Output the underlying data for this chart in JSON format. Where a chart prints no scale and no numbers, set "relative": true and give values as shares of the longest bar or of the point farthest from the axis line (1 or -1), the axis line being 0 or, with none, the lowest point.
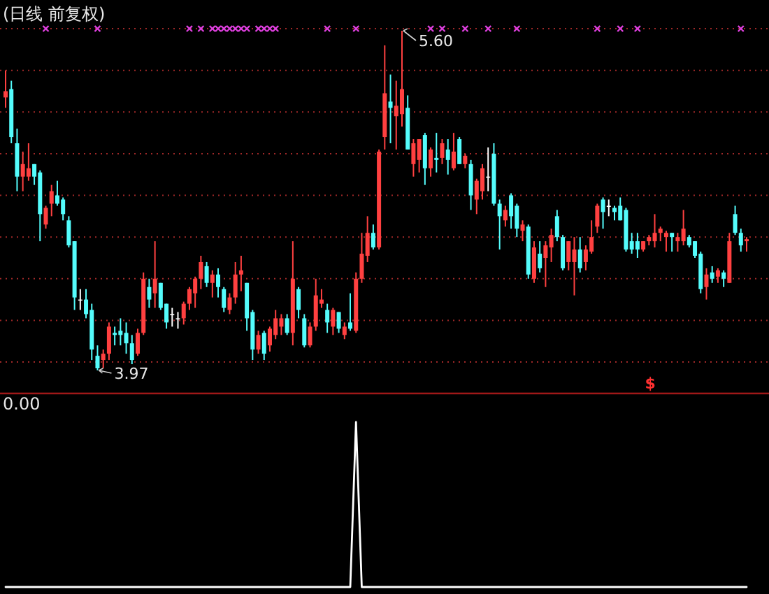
{
  "chart_data": [
    {
      "type": "candlestick",
      "title": "(日线 前复权)",
      "categories": [
        null,
        null,
        null,
        null,
        null,
        null,
        null,
        null,
        null,
        null,
        null,
        null,
        null,
        null,
        null,
        null,
        null,
        null,
        null,
        null,
        null,
        null,
        null,
        null,
        null,
        null,
        null,
        null,
        null,
        null,
        null,
        null,
        null,
        null,
        null,
        null,
        null,
        null,
        null,
        null,
        null,
        null,
        null,
        null,
        null,
        null,
        null,
        null,
        null,
        null,
        null,
        null,
        null,
        null,
        null,
        null,
        null,
        null,
        null,
        null,
        null,
        null,
        null,
        null,
        null,
        null,
        null,
        null,
        null,
        null,
        null,
        null,
        null,
        null,
        null,
        null,
        null,
        null,
        null,
        null,
        null,
        null,
        null,
        null,
        null,
        null,
        null,
        null,
        null,
        null,
        null,
        null,
        null,
        null,
        null,
        null,
        null,
        null,
        null,
        null,
        null,
        null,
        null,
        null,
        null,
        null,
        null,
        null,
        null,
        null,
        null,
        null,
        null,
        null,
        null,
        null,
        null,
        null,
        null,
        null,
        null,
        null,
        null,
        null,
        null,
        null,
        null,
        null,
        null,
        null
      ],
      "ohlc": [
        [
          5.28,
          5.41,
          5.23,
          5.31
        ],
        [
          5.32,
          5.36,
          5.06,
          5.09
        ],
        [
          5.06,
          5.13,
          4.83,
          4.9
        ],
        [
          4.9,
          5.02,
          4.83,
          4.96
        ],
        [
          4.9,
          5.06,
          4.88,
          4.94
        ],
        [
          4.96,
          4.96,
          4.86,
          4.9
        ],
        [
          4.92,
          4.93,
          4.59,
          4.72
        ],
        [
          4.67,
          4.76,
          4.65,
          4.75
        ],
        [
          4.77,
          4.86,
          4.71,
          4.83
        ],
        [
          4.81,
          4.88,
          4.76,
          4.77
        ],
        [
          4.79,
          4.8,
          4.69,
          4.72
        ],
        [
          4.69,
          4.71,
          4.56,
          4.57
        ],
        [
          4.59,
          4.59,
          4.26,
          4.32
        ],
        [
          4.31,
          4.36,
          4.26,
          4.31
        ],
        [
          4.31,
          4.36,
          4.22,
          4.24
        ],
        [
          4.26,
          4.29,
          4.02,
          4.07
        ],
        [
          4.04,
          4.09,
          3.97,
          3.98
        ],
        [
          4.02,
          4.07,
          3.98,
          4.05
        ],
        [
          4.05,
          4.2,
          4.02,
          4.18
        ],
        [
          4.15,
          4.18,
          4.09,
          4.14
        ],
        [
          4.16,
          4.22,
          4.09,
          4.14
        ],
        [
          4.15,
          4.2,
          4.05,
          4.1
        ],
        [
          4.1,
          4.14,
          4.0,
          4.02
        ],
        [
          4.05,
          4.17,
          4.04,
          4.15
        ],
        [
          4.15,
          4.44,
          4.14,
          4.41
        ],
        [
          4.37,
          4.41,
          4.27,
          4.31
        ],
        [
          4.34,
          4.59,
          4.27,
          4.41
        ],
        [
          4.39,
          4.39,
          4.26,
          4.27
        ],
        [
          4.29,
          4.29,
          4.17,
          4.2
        ],
        [
          4.24,
          4.27,
          4.18,
          4.24
        ],
        [
          4.22,
          4.25,
          4.17,
          4.22
        ],
        [
          4.22,
          4.3,
          4.19,
          4.29
        ],
        [
          4.29,
          4.37,
          4.26,
          4.36
        ],
        [
          4.34,
          4.42,
          4.27,
          4.41
        ],
        [
          4.41,
          4.52,
          4.36,
          4.49
        ],
        [
          4.47,
          4.49,
          4.37,
          4.39
        ],
        [
          4.39,
          4.45,
          4.32,
          4.43
        ],
        [
          4.43,
          4.46,
          4.32,
          4.37
        ],
        [
          4.36,
          4.37,
          4.25,
          4.27
        ],
        [
          4.26,
          4.34,
          4.24,
          4.32
        ],
        [
          4.32,
          4.49,
          4.29,
          4.43
        ],
        [
          4.43,
          4.52,
          4.35,
          4.45
        ],
        [
          4.39,
          4.39,
          4.16,
          4.22
        ],
        [
          4.25,
          4.26,
          4.02,
          4.07
        ],
        [
          4.07,
          4.16,
          4.05,
          4.14
        ],
        [
          4.15,
          4.16,
          4.02,
          4.05
        ],
        [
          4.09,
          4.18,
          4.06,
          4.17
        ],
        [
          4.14,
          4.26,
          4.12,
          4.22
        ],
        [
          4.18,
          4.24,
          4.14,
          4.22
        ],
        [
          4.22,
          4.24,
          4.14,
          4.15
        ],
        [
          4.15,
          4.59,
          4.09,
          4.41
        ],
        [
          4.36,
          4.37,
          4.22,
          4.26
        ],
        [
          4.22,
          4.24,
          4.08,
          4.09
        ],
        [
          4.09,
          4.2,
          4.08,
          4.18
        ],
        [
          4.18,
          4.41,
          4.16,
          4.33
        ],
        [
          4.29,
          4.36,
          4.27,
          4.31
        ],
        [
          4.26,
          4.29,
          4.15,
          4.2
        ],
        [
          4.18,
          4.27,
          4.14,
          4.26
        ],
        [
          4.25,
          4.25,
          4.15,
          4.17
        ],
        [
          4.14,
          4.2,
          4.12,
          4.18
        ],
        [
          4.2,
          4.34,
          4.16,
          4.17
        ],
        [
          4.16,
          4.44,
          4.15,
          4.41
        ],
        [
          4.41,
          4.63,
          4.39,
          4.53
        ],
        [
          4.52,
          4.71,
          4.49,
          4.63
        ],
        [
          4.63,
          4.67,
          4.55,
          4.56
        ],
        [
          4.56,
          5.03,
          4.55,
          5.02
        ],
        [
          5.09,
          5.53,
          5.03,
          5.3
        ],
        [
          5.26,
          5.39,
          5.06,
          5.23
        ],
        [
          5.19,
          5.36,
          5.03,
          5.24
        ],
        [
          5.2,
          5.6,
          5.14,
          5.32
        ],
        [
          5.23,
          5.29,
          5.03,
          5.03
        ],
        [
          4.96,
          5.08,
          4.9,
          5.06
        ],
        [
          4.98,
          5.08,
          4.92,
          5.08
        ],
        [
          5.1,
          5.11,
          4.86,
          4.94
        ],
        [
          4.94,
          5.04,
          4.9,
          5.03
        ],
        [
          4.99,
          5.11,
          4.92,
          4.98
        ],
        [
          4.99,
          5.08,
          4.96,
          5.06
        ],
        [
          5.03,
          5.08,
          4.91,
          4.98
        ],
        [
          4.94,
          5.11,
          4.93,
          5.02
        ],
        [
          5.08,
          5.09,
          4.96,
          4.96
        ],
        [
          4.96,
          5.01,
          4.94,
          5.0
        ],
        [
          4.96,
          4.98,
          4.74,
          4.81
        ],
        [
          4.79,
          4.89,
          4.72,
          4.88
        ],
        [
          4.83,
          4.96,
          4.79,
          4.94
        ],
        [
          4.9,
          5.04,
          4.83,
          4.9
        ],
        [
          5.01,
          5.06,
          4.76,
          4.77
        ],
        [
          4.77,
          4.79,
          4.55,
          4.71
        ],
        [
          4.69,
          4.76,
          4.66,
          4.74
        ],
        [
          4.81,
          4.82,
          4.65,
          4.71
        ],
        [
          4.76,
          4.77,
          4.61,
          4.65
        ],
        [
          4.64,
          4.69,
          4.59,
          4.67
        ],
        [
          4.66,
          4.67,
          4.41,
          4.43
        ],
        [
          4.41,
          4.59,
          4.39,
          4.56
        ],
        [
          4.53,
          4.59,
          4.44,
          4.46
        ],
        [
          4.51,
          4.59,
          4.37,
          4.57
        ],
        [
          4.56,
          4.65,
          4.49,
          4.62
        ],
        [
          4.71,
          4.74,
          4.59,
          4.61
        ],
        [
          4.61,
          4.62,
          4.45,
          4.46
        ],
        [
          4.49,
          4.59,
          4.45,
          4.59
        ],
        [
          4.49,
          4.61,
          4.33,
          4.55
        ],
        [
          4.55,
          4.61,
          4.44,
          4.46
        ],
        [
          4.49,
          4.57,
          4.45,
          4.55
        ],
        [
          4.54,
          4.69,
          4.53,
          4.61
        ],
        [
          4.66,
          4.77,
          4.63,
          4.76
        ],
        [
          4.79,
          4.8,
          4.65,
          4.73
        ],
        [
          4.76,
          4.79,
          4.71,
          4.76
        ],
        [
          4.75,
          4.76,
          4.69,
          4.73
        ],
        [
          4.76,
          4.8,
          4.69,
          4.69
        ],
        [
          4.74,
          4.75,
          4.54,
          4.55
        ],
        [
          4.59,
          4.63,
          4.53,
          4.55
        ],
        [
          4.59,
          4.63,
          4.51,
          4.55
        ],
        [
          4.55,
          4.59,
          4.54,
          4.59
        ],
        [
          4.59,
          4.62,
          4.57,
          4.61
        ],
        [
          4.59,
          4.72,
          4.56,
          4.63
        ],
        [
          4.63,
          4.66,
          4.59,
          4.65
        ],
        [
          4.61,
          4.64,
          4.54,
          4.63
        ],
        [
          4.63,
          4.63,
          4.54,
          4.61
        ],
        [
          4.59,
          4.63,
          4.54,
          4.61
        ],
        [
          4.59,
          4.74,
          4.57,
          4.65
        ],
        [
          4.61,
          4.62,
          4.56,
          4.57
        ],
        [
          4.59,
          4.59,
          4.51,
          4.52
        ],
        [
          4.53,
          4.54,
          4.34,
          4.36
        ],
        [
          4.37,
          4.46,
          4.31,
          4.43
        ],
        [
          4.44,
          4.47,
          4.39,
          4.41
        ],
        [
          4.42,
          4.46,
          4.39,
          4.45
        ],
        [
          4.44,
          4.45,
          4.37,
          4.41
        ],
        [
          4.39,
          4.63,
          4.39,
          4.59
        ],
        [
          4.72,
          4.76,
          4.62,
          4.63
        ],
        [
          4.63,
          4.65,
          4.54,
          4.57
        ],
        [
          4.59,
          4.61,
          4.54,
          4.6
        ]
      ],
      "series": [
        {
          "type": "scatter",
          "marker": "cross",
          "color": "#e040e0",
          "values": [
            null,
            null,
            null,
            null,
            null,
            null,
            null,
            5.61,
            null,
            null,
            null,
            null,
            null,
            null,
            null,
            null,
            5.61,
            null,
            null,
            null,
            null,
            null,
            null,
            null,
            null,
            null,
            null,
            null,
            null,
            null,
            null,
            null,
            5.61,
            null,
            5.61,
            null,
            5.61,
            5.61,
            5.61,
            5.61,
            5.61,
            5.61,
            5.61,
            null,
            5.61,
            5.61,
            5.61,
            5.61,
            null,
            null,
            null,
            null,
            null,
            null,
            null,
            null,
            5.61,
            null,
            null,
            null,
            null,
            5.61,
            null,
            null,
            null,
            null,
            null,
            null,
            null,
            null,
            null,
            null,
            null,
            null,
            5.61,
            null,
            5.61,
            null,
            null,
            null,
            5.61,
            null,
            null,
            null,
            5.61,
            null,
            null,
            null,
            null,
            5.61,
            null,
            null,
            null,
            null,
            null,
            null,
            null,
            null,
            null,
            null,
            null,
            null,
            null,
            5.61,
            null,
            null,
            null,
            5.61,
            null,
            null,
            5.61,
            null,
            null,
            null,
            null,
            null,
            null,
            null,
            null,
            null,
            null,
            null,
            null,
            null,
            null,
            null,
            null,
            null,
            5.61,
            null
          ]
        }
      ],
      "yticks": [
        {
          "value": 4.01,
          "label": null
        },
        {
          "value": 4.21,
          "label": null
        },
        {
          "value": 4.41,
          "label": null
        },
        {
          "value": 4.61,
          "label": null
        },
        {
          "value": 4.81,
          "label": null
        },
        {
          "value": 5.01,
          "label": null
        },
        {
          "value": 5.21,
          "label": null
        },
        {
          "value": 5.41,
          "label": null
        },
        {
          "value": 5.61,
          "label": null
        }
      ],
      "grid": "y",
      "annotations": [
        {
          "text": "5.60",
          "y": 5.6
        },
        {
          "text": "3.97",
          "y": 3.97
        },
        "$"
      ]
    },
    {
      "type": "line",
      "title": "0.00",
      "relative": true,
      "categories": [
        null,
        null,
        null,
        null,
        null,
        null,
        null,
        null,
        null,
        null,
        null,
        null,
        null,
        null,
        null,
        null,
        null,
        null,
        null,
        null,
        null,
        null,
        null,
        null,
        null,
        null,
        null,
        null,
        null,
        null,
        null,
        null,
        null,
        null,
        null,
        null,
        null,
        null,
        null,
        null,
        null,
        null,
        null,
        null,
        null,
        null,
        null,
        null,
        null,
        null,
        null,
        null,
        null,
        null,
        null,
        null,
        null,
        null,
        null,
        null,
        null,
        null,
        null,
        null,
        null,
        null,
        null,
        null,
        null,
        null,
        null,
        null,
        null,
        null,
        null,
        null,
        null,
        null,
        null,
        null,
        null,
        null,
        null,
        null,
        null,
        null,
        null,
        null,
        null,
        null,
        null,
        null,
        null,
        null,
        null,
        null,
        null,
        null,
        null,
        null,
        null,
        null,
        null,
        null,
        null,
        null,
        null,
        null,
        null,
        null,
        null,
        null,
        null,
        null,
        null,
        null,
        null,
        null,
        null,
        null,
        null,
        null,
        null,
        null,
        null,
        null,
        null,
        null,
        null,
        null
      ],
      "series": [
        {
          "color": "#ffffff",
          "values": [
            0,
            0,
            0,
            0,
            0,
            0,
            0,
            0,
            0,
            0,
            0,
            0,
            0,
            0,
            0,
            0,
            0,
            0,
            0,
            0,
            0,
            0,
            0,
            0,
            0,
            0,
            0,
            0,
            0,
            0,
            0,
            0,
            0,
            0,
            0,
            0,
            0,
            0,
            0,
            0,
            0,
            0,
            0,
            0,
            0,
            0,
            0,
            0,
            0,
            0,
            0,
            0,
            0,
            0,
            0,
            0,
            0,
            0,
            0,
            0,
            0,
            1,
            0,
            0,
            0,
            0,
            0,
            0,
            0,
            0,
            0,
            0,
            0,
            0,
            0,
            0,
            0,
            0,
            0,
            0,
            0,
            0,
            0,
            0,
            0,
            0,
            0,
            0,
            0,
            0,
            0,
            0,
            0,
            0,
            0,
            0,
            0,
            0,
            0,
            0,
            0,
            0,
            0,
            0,
            0,
            0,
            0,
            0,
            0,
            0,
            0,
            0,
            0,
            0,
            0,
            0,
            0,
            0,
            0,
            0,
            0,
            0,
            0,
            0,
            0,
            0,
            0,
            0,
            0,
            0
          ]
        }
      ]
    }
  ]
}
